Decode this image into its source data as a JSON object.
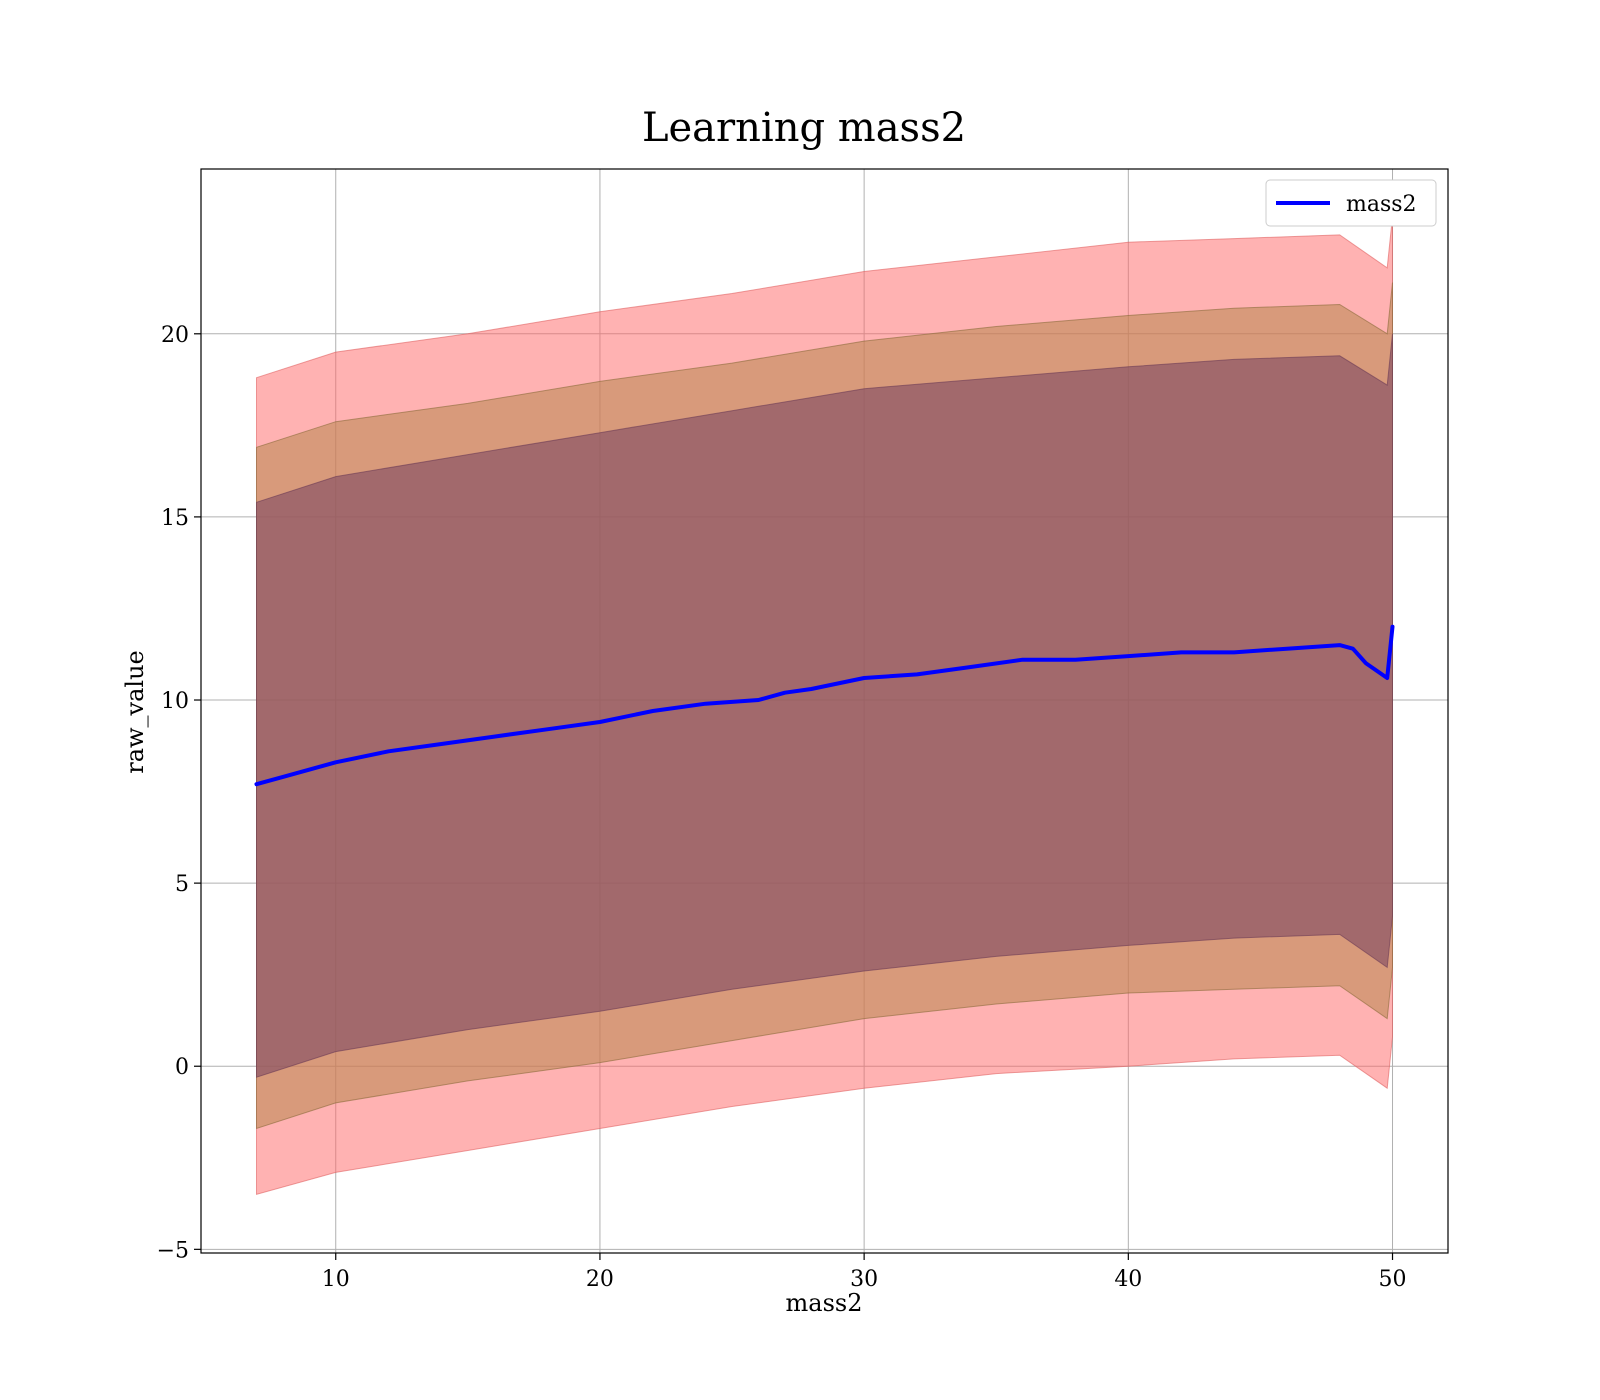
{
  "chart_data": {
    "type": "line",
    "title": "Learning mass2",
    "xlabel": "mass2",
    "ylabel": "raw_value",
    "xlim": [
      4.9,
      52.1
    ],
    "ylim": [
      -5.1,
      24.5
    ],
    "xticks": [
      10,
      20,
      30,
      40,
      50
    ],
    "yticks": [
      -5,
      0,
      5,
      10,
      15,
      20
    ],
    "xtick_labels": [
      "10",
      "20",
      "30",
      "40",
      "50"
    ],
    "ytick_labels": [
      "−5",
      "0",
      "5",
      "10",
      "15",
      "20"
    ],
    "grid": true,
    "legend": {
      "placement": "top-right",
      "entries": [
        "mass2"
      ]
    },
    "colors": {
      "line": "#0000ff",
      "band_outer": "#ff6666",
      "band_middle": "#b8864f",
      "band_inner": "#7f4a63"
    },
    "series": [
      {
        "name": "mass2",
        "x": [
          7,
          8,
          10,
          12,
          14,
          16,
          18,
          20,
          22,
          24,
          26,
          27,
          28,
          30,
          32,
          34,
          36,
          38,
          40,
          42,
          44,
          46,
          48,
          48.5,
          49,
          49.8,
          50
        ],
        "y": [
          7.7,
          7.9,
          8.3,
          8.6,
          8.8,
          9.0,
          9.2,
          9.4,
          9.7,
          9.9,
          10.0,
          10.2,
          10.3,
          10.6,
          10.7,
          10.9,
          11.1,
          11.1,
          11.2,
          11.3,
          11.3,
          11.4,
          11.5,
          11.4,
          11.0,
          10.6,
          12.0
        ]
      }
    ],
    "bands": [
      {
        "level": "outer",
        "x": [
          7,
          10,
          15,
          20,
          25,
          30,
          35,
          40,
          44,
          48,
          49.8,
          50
        ],
        "upper": [
          18.8,
          19.5,
          20.0,
          20.6,
          21.1,
          21.7,
          22.1,
          22.5,
          22.6,
          22.7,
          21.8,
          23.2
        ],
        "lower": [
          -3.5,
          -2.9,
          -2.3,
          -1.7,
          -1.1,
          -0.6,
          -0.2,
          0.0,
          0.2,
          0.3,
          -0.6,
          0.8
        ]
      },
      {
        "level": "middle",
        "x": [
          7,
          10,
          15,
          20,
          25,
          30,
          35,
          40,
          44,
          48,
          49.8,
          50
        ],
        "upper": [
          16.9,
          17.6,
          18.1,
          18.7,
          19.2,
          19.8,
          20.2,
          20.5,
          20.7,
          20.8,
          20.0,
          21.4
        ],
        "lower": [
          -1.7,
          -1.0,
          -0.4,
          0.1,
          0.7,
          1.3,
          1.7,
          2.0,
          2.1,
          2.2,
          1.3,
          2.7
        ]
      },
      {
        "level": "inner",
        "x": [
          7,
          10,
          15,
          20,
          25,
          30,
          35,
          40,
          44,
          48,
          49.8,
          50
        ],
        "upper": [
          15.4,
          16.1,
          16.7,
          17.3,
          17.9,
          18.5,
          18.8,
          19.1,
          19.3,
          19.4,
          18.6,
          20.0
        ],
        "lower": [
          -0.3,
          0.4,
          1.0,
          1.5,
          2.1,
          2.6,
          3.0,
          3.3,
          3.5,
          3.6,
          2.7,
          4.1
        ]
      }
    ]
  }
}
